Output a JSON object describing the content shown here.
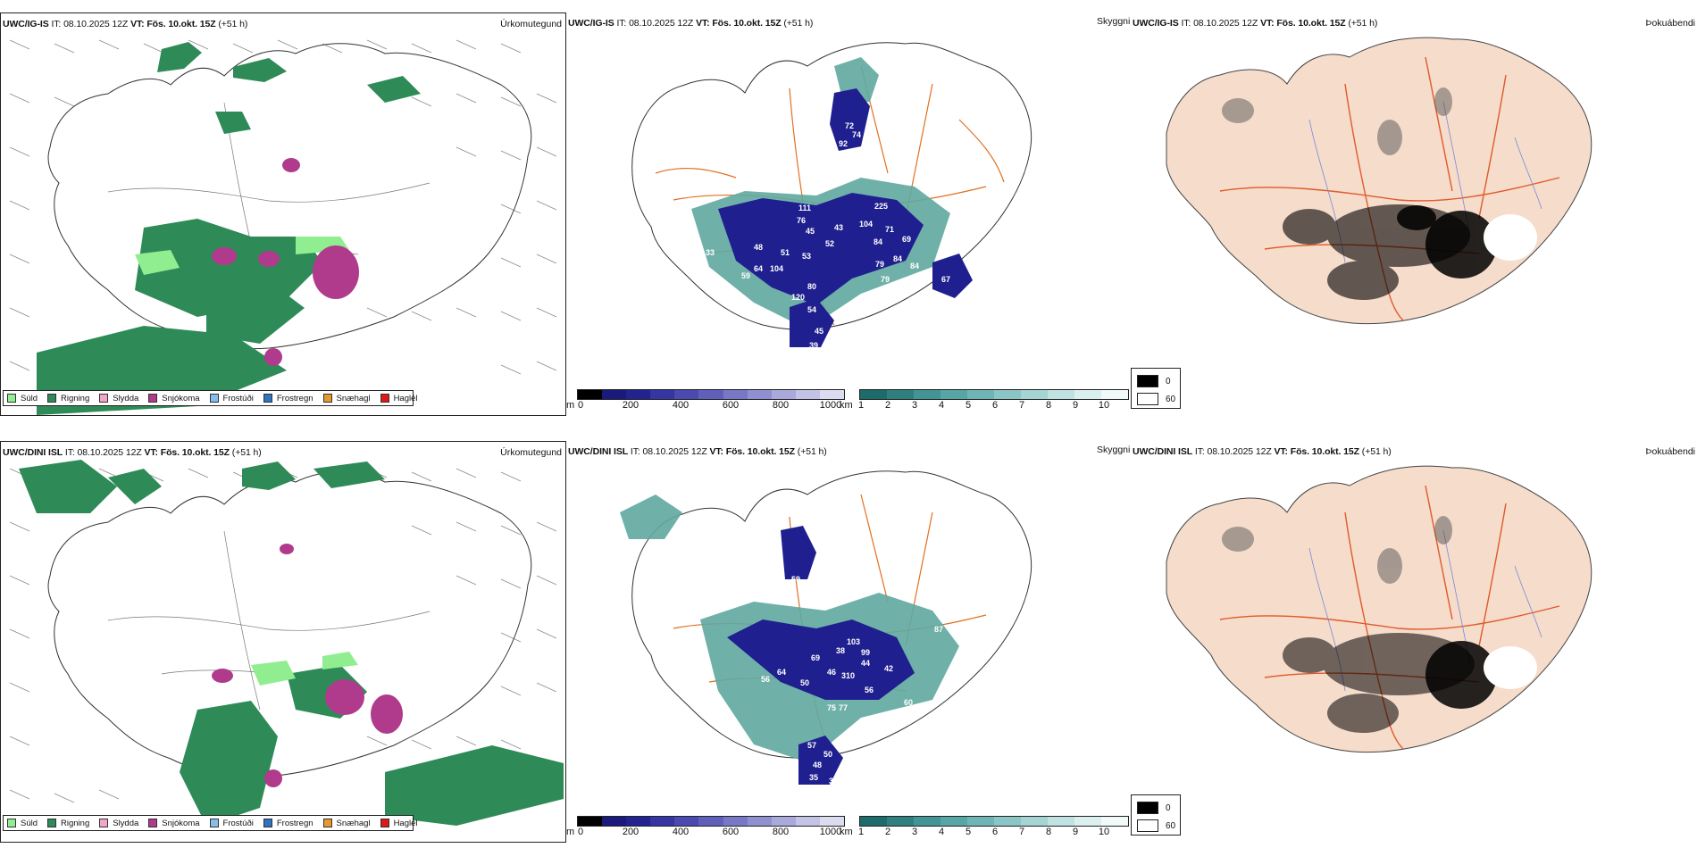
{
  "rows": [
    {
      "model": "UWC/IG-IS",
      "it_label": "IT:",
      "it_value": "08.10.2025 12Z",
      "vt_label": "VT:",
      "vt_value": "Fös. 10.okt. 15Z",
      "lead": "(+51 h)",
      "precip_field": "Úrkomutegund",
      "ceiling_field": "Skyggni",
      "fog_field": "Þokuábendi",
      "cloud_labels": [
        "72",
        "74",
        "92",
        "68",
        "111",
        "225",
        "76",
        "45",
        "43",
        "104",
        "71",
        "69",
        "48",
        "52",
        "84",
        "33",
        "51",
        "53",
        "79",
        "84",
        "84",
        "67",
        "64",
        "104",
        "59",
        "80",
        "79",
        "120",
        "54",
        "73",
        "45",
        "39",
        "33",
        "36",
        "69"
      ]
    },
    {
      "model": "UWC/DINI ISL",
      "it_label": "IT:",
      "it_value": "08.10.2025 12Z",
      "vt_label": "VT:",
      "vt_value": "Fös. 10.okt. 15Z",
      "lead": "(+51 h)",
      "precip_field": "Úrkomutegund",
      "ceiling_field": "Skyggni",
      "fog_field": "Þokuábendi",
      "cloud_labels": [
        "59",
        "87",
        "103",
        "38",
        "99",
        "44",
        "42",
        "69",
        "46",
        "310",
        "56",
        "64",
        "50",
        "60",
        "56",
        "75",
        "77",
        "57",
        "50",
        "48",
        "35",
        "39",
        "60"
      ]
    }
  ],
  "precip_legend": [
    {
      "label": "Súld",
      "color": "#90ee90"
    },
    {
      "label": "Rigning",
      "color": "#2e8b57"
    },
    {
      "label": "Slydda",
      "color": "#f4a6c8"
    },
    {
      "label": "Snjókoma",
      "color": "#b03a8c"
    },
    {
      "label": "Frostúði",
      "color": "#87bde8"
    },
    {
      "label": "Frostregn",
      "color": "#2f73c4"
    },
    {
      "label": "Snæhagl",
      "color": "#e69a2e"
    },
    {
      "label": "Haglél",
      "color": "#e01818"
    }
  ],
  "cloud_base_bar": {
    "unit": "m",
    "ticks": [
      "0",
      "200",
      "400",
      "600",
      "800",
      "1000"
    ],
    "colors": [
      "#000000",
      "#1a1a7a",
      "#23238f",
      "#3535a3",
      "#4a4ab0",
      "#6060bb",
      "#7878c6",
      "#9090d0",
      "#a9a9db",
      "#c3c3e6",
      "#dcdcf0"
    ]
  },
  "visibility_bar": {
    "unit": "km",
    "ticks": [
      "1",
      "2",
      "3",
      "4",
      "5",
      "6",
      "7",
      "8",
      "9",
      "10"
    ],
    "colors": [
      "#1d6b6b",
      "#2f7f7f",
      "#439494",
      "#58a5a5",
      "#70b5b5",
      "#8bc5c5",
      "#a6d4d4",
      "#c1e2e2",
      "#dcefef",
      "#f2f9f9"
    ]
  },
  "fog_legend": [
    {
      "label": "0",
      "color": "#000000"
    },
    {
      "label": "60",
      "color": "#ffffff"
    }
  ],
  "map_colors": {
    "rain": "#2e8b57",
    "drizzle": "#90ee90",
    "snow": "#b03a8c",
    "sleet": "#f4a6c8",
    "cloud_dark": "#1f1f8f",
    "cloud_teal": "#5fa8a0",
    "road": "#e07020",
    "land": "#f5dccb",
    "river": "#7a8ad8"
  }
}
